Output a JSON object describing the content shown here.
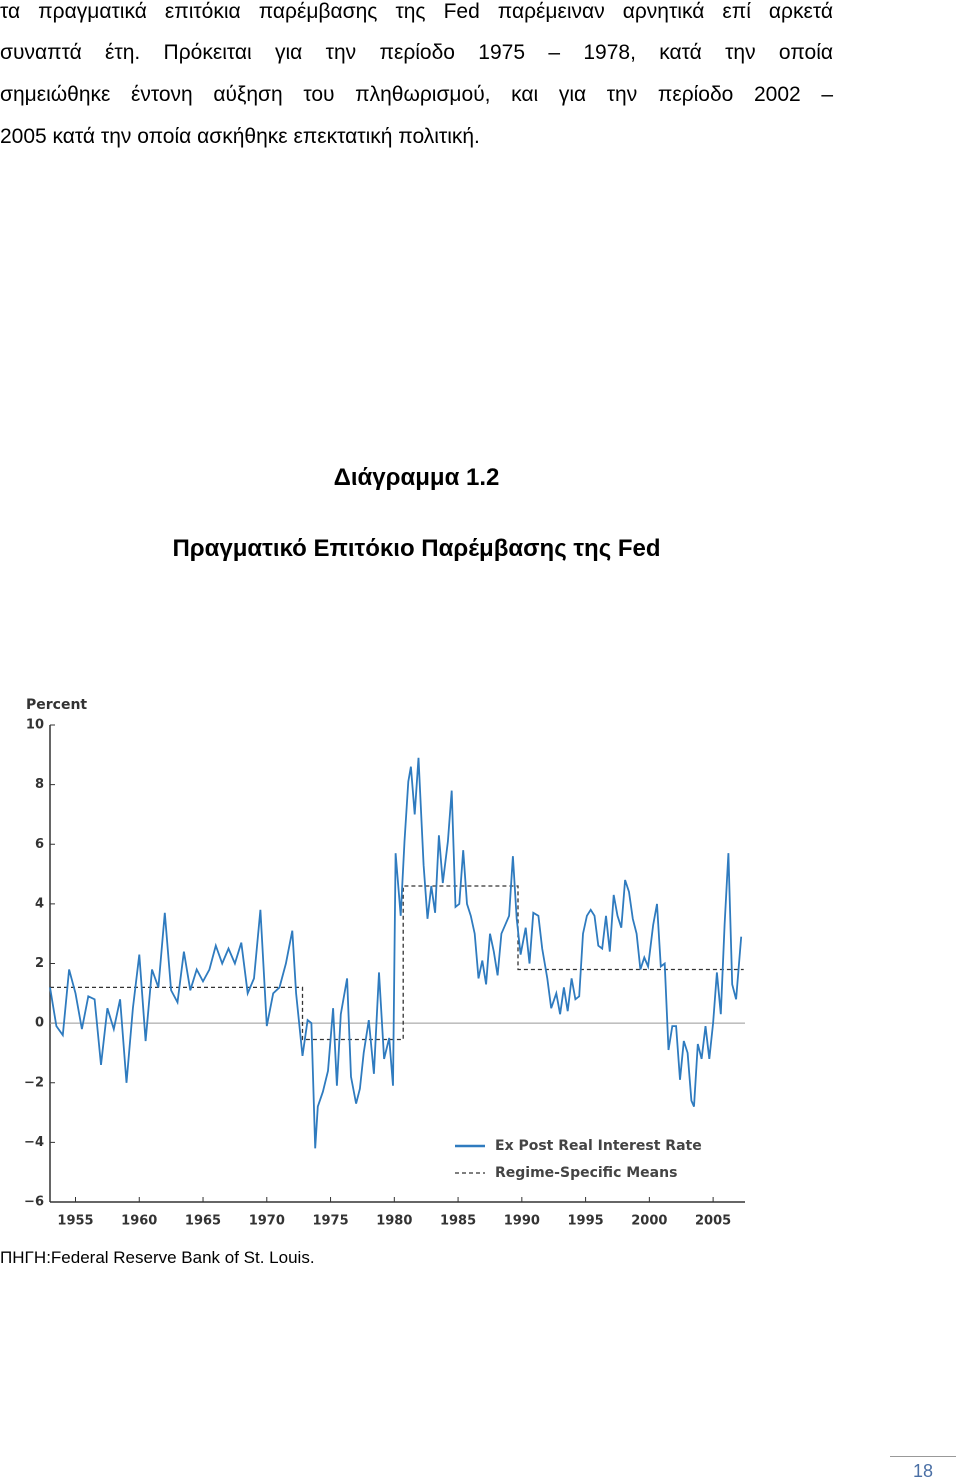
{
  "paragraph_lines": [
    "τα πραγματικά επιτόκια παρέμβασης της Fed παρέμειναν αρνητικά επί αρκετά",
    "συναπτά έτη. Πρόκειται για την περίοδο 1975 – 1978, κατά την οποία",
    "σημειώθηκε έντονη αύξηση του πληθωρισμού, και για την περίοδο 2002 –",
    "2005 κατά την οποία ασκήθηκε επεκτατική πολιτική."
  ],
  "figure": {
    "label": "Διάγραμμα 1.2",
    "title": "Πραγματικό Επιτόκιο Παρέμβασης της Fed"
  },
  "chart_data": {
    "type": "line",
    "y_label": "Percent",
    "xlim": [
      1953,
      2007.5
    ],
    "xticks": [
      1955,
      1960,
      1965,
      1970,
      1975,
      1980,
      1985,
      1990,
      1995,
      2000,
      2005
    ],
    "ylim": [
      -6,
      10
    ],
    "yticks": [
      {
        "value": -6,
        "label": "−6"
      },
      {
        "value": -4,
        "label": "−4"
      },
      {
        "value": -2,
        "label": "−2"
      },
      0,
      2,
      4,
      6,
      8,
      10
    ],
    "zero_line": true,
    "legend": "bottom-right",
    "series": [
      {
        "name": "Ex Post Real Interest Rate",
        "color": "#2f7bbf",
        "dash": false,
        "x": [
          1953.0,
          1953.5,
          1954.0,
          1954.5,
          1955.0,
          1955.5,
          1956.0,
          1956.5,
          1957.0,
          1957.5,
          1958.0,
          1958.5,
          1959.0,
          1959.5,
          1960.0,
          1960.5,
          1961.0,
          1961.5,
          1962.0,
          1962.5,
          1963.0,
          1963.5,
          1964.0,
          1964.5,
          1965.0,
          1965.5,
          1966.0,
          1966.5,
          1967.0,
          1967.5,
          1968.0,
          1968.5,
          1969.0,
          1969.5,
          1970.0,
          1970.5,
          1971.0,
          1971.5,
          1972.0,
          1972.3,
          1972.8,
          1973.2,
          1973.5,
          1973.8,
          1974.0,
          1974.4,
          1974.8,
          1975.2,
          1975.5,
          1975.8,
          1976.3,
          1976.6,
          1977.0,
          1977.3,
          1977.6,
          1978.0,
          1978.4,
          1978.8,
          1979.2,
          1979.6,
          1979.9,
          1980.1,
          1980.5,
          1980.8,
          1981.1,
          1981.3,
          1981.6,
          1981.9,
          1982.3,
          1982.6,
          1982.9,
          1983.2,
          1983.5,
          1983.8,
          1984.2,
          1984.5,
          1984.8,
          1985.1,
          1985.4,
          1985.7,
          1986.0,
          1986.3,
          1986.6,
          1986.9,
          1987.2,
          1987.5,
          1987.8,
          1988.1,
          1988.4,
          1988.7,
          1989.0,
          1989.3,
          1989.6,
          1989.9,
          1990.3,
          1990.6,
          1990.9,
          1991.3,
          1991.6,
          1992.0,
          1992.3,
          1992.7,
          1993.0,
          1993.3,
          1993.6,
          1993.9,
          1994.2,
          1994.5,
          1994.8,
          1995.1,
          1995.4,
          1995.7,
          1996.0,
          1996.3,
          1996.6,
          1996.9,
          1997.2,
          1997.5,
          1997.8,
          1998.1,
          1998.4,
          1998.7,
          1999.0,
          1999.3,
          1999.6,
          1999.9,
          2000.3,
          2000.6,
          2000.9,
          2001.2,
          2001.5,
          2001.8,
          2002.1,
          2002.4,
          2002.7,
          2003.0,
          2003.3,
          2003.5,
          2003.8,
          2004.1,
          2004.4,
          2004.7,
          2005.0,
          2005.3,
          2005.6,
          2005.9,
          2006.2,
          2006.5,
          2006.8,
          2007.2
        ],
        "values": [
          1.2,
          -0.1,
          -0.4,
          1.8,
          1.0,
          -0.2,
          0.9,
          0.8,
          -1.4,
          0.5,
          -0.2,
          0.8,
          -2.0,
          0.5,
          2.3,
          -0.6,
          1.8,
          1.2,
          3.7,
          1.1,
          0.7,
          2.4,
          1.1,
          1.8,
          1.4,
          1.8,
          2.6,
          2.0,
          2.5,
          2.0,
          2.7,
          1.0,
          1.5,
          3.8,
          -0.1,
          1.0,
          1.2,
          2.0,
          3.1,
          1.0,
          -1.1,
          0.1,
          0.0,
          -4.2,
          -2.8,
          -2.3,
          -1.6,
          0.5,
          -2.1,
          0.3,
          1.5,
          -1.8,
          -2.7,
          -2.2,
          -1.0,
          0.1,
          -1.7,
          1.7,
          -1.2,
          -0.5,
          -2.1,
          5.7,
          3.6,
          6.1,
          8.1,
          8.6,
          7.0,
          8.9,
          5.3,
          3.5,
          4.6,
          3.7,
          6.3,
          4.7,
          6.1,
          7.8,
          3.9,
          4.0,
          5.8,
          4.0,
          3.6,
          3.0,
          1.5,
          2.1,
          1.3,
          3.0,
          2.4,
          1.6,
          3.0,
          3.3,
          3.6,
          5.6,
          3.5,
          2.3,
          3.2,
          2.0,
          3.7,
          3.6,
          2.5,
          1.5,
          0.5,
          1.0,
          0.3,
          1.2,
          0.4,
          1.5,
          0.8,
          0.9,
          3.0,
          3.6,
          3.8,
          3.6,
          2.6,
          2.5,
          3.6,
          2.4,
          4.3,
          3.6,
          3.2,
          4.8,
          4.4,
          3.5,
          3.0,
          1.8,
          2.2,
          1.9,
          3.3,
          4.0,
          1.9,
          2.0,
          -0.9,
          -0.1,
          -0.1,
          -1.9,
          -0.6,
          -1.0,
          -2.6,
          -2.8,
          -0.7,
          -1.2,
          -0.1,
          -1.2,
          0.0,
          1.7,
          0.3,
          3.3,
          5.7,
          1.3,
          0.8,
          2.9
        ]
      },
      {
        "name": "Regime-Specific Means",
        "color": "#333333",
        "dash": true,
        "x": [
          1953,
          1972.8,
          1972.8,
          1980.7,
          1980.7,
          1989.7,
          1989.7,
          2007.4
        ],
        "values": [
          1.2,
          1.2,
          -0.55,
          -0.55,
          4.6,
          4.6,
          1.8,
          1.8
        ]
      }
    ]
  },
  "source": "ΠΗΓΗ:Federal Reserve Bank of St. Louis.",
  "page_number": "18"
}
